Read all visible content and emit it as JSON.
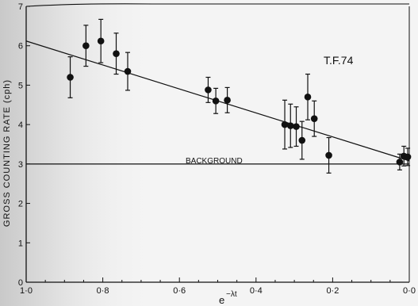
{
  "chart_data": {
    "type": "scatter",
    "title": "",
    "xlabel_base": "e",
    "xlabel_exp": "−λt",
    "ylabel": "GROSS COUNTING RATE (cph)",
    "xlim": [
      1.0,
      0.0
    ],
    "ylim": [
      0,
      7
    ],
    "x_ticks": [
      1.0,
      0.8,
      0.6,
      0.4,
      0.2,
      0.0
    ],
    "x_tick_labels": [
      "1·0",
      "0·8",
      "0·6",
      "0·4",
      "0·2",
      "0·0"
    ],
    "y_ticks": [
      0,
      1,
      2,
      3,
      4,
      5,
      6,
      7
    ],
    "y_tick_labels": [
      "0",
      "1",
      "2",
      "3",
      "4",
      "5",
      "6",
      "7"
    ],
    "grid": false,
    "sample_label": "T.F.74",
    "background_label": "BACKGROUND",
    "background_level": 3.0,
    "fit_line": {
      "x": [
        1.0,
        0.0
      ],
      "y": [
        6.12,
        3.08
      ]
    },
    "series": [
      {
        "points": [
          {
            "x": 0.885,
            "y": 5.2,
            "err": 0.52
          },
          {
            "x": 0.844,
            "y": 6.0,
            "err": 0.52
          },
          {
            "x": 0.805,
            "y": 6.12,
            "err": 0.55
          },
          {
            "x": 0.765,
            "y": 5.8,
            "err": 0.52
          },
          {
            "x": 0.735,
            "y": 5.35,
            "err": 0.48
          },
          {
            "x": 0.525,
            "y": 4.88,
            "err": 0.32
          },
          {
            "x": 0.505,
            "y": 4.6,
            "err": 0.32
          },
          {
            "x": 0.475,
            "y": 4.62,
            "err": 0.32
          },
          {
            "x": 0.325,
            "y": 4.0,
            "err": 0.62
          },
          {
            "x": 0.31,
            "y": 3.97,
            "err": 0.55
          },
          {
            "x": 0.295,
            "y": 3.95,
            "err": 0.5
          },
          {
            "x": 0.28,
            "y": 3.6,
            "err": 0.48
          },
          {
            "x": 0.265,
            "y": 4.7,
            "err": 0.58
          },
          {
            "x": 0.248,
            "y": 4.15,
            "err": 0.45
          },
          {
            "x": 0.21,
            "y": 3.22,
            "err": 0.45
          },
          {
            "x": 0.025,
            "y": 3.05,
            "err": 0.2
          },
          {
            "x": 0.014,
            "y": 3.2,
            "err": 0.25
          },
          {
            "x": 0.004,
            "y": 3.18,
            "err": 0.22
          }
        ]
      }
    ]
  }
}
